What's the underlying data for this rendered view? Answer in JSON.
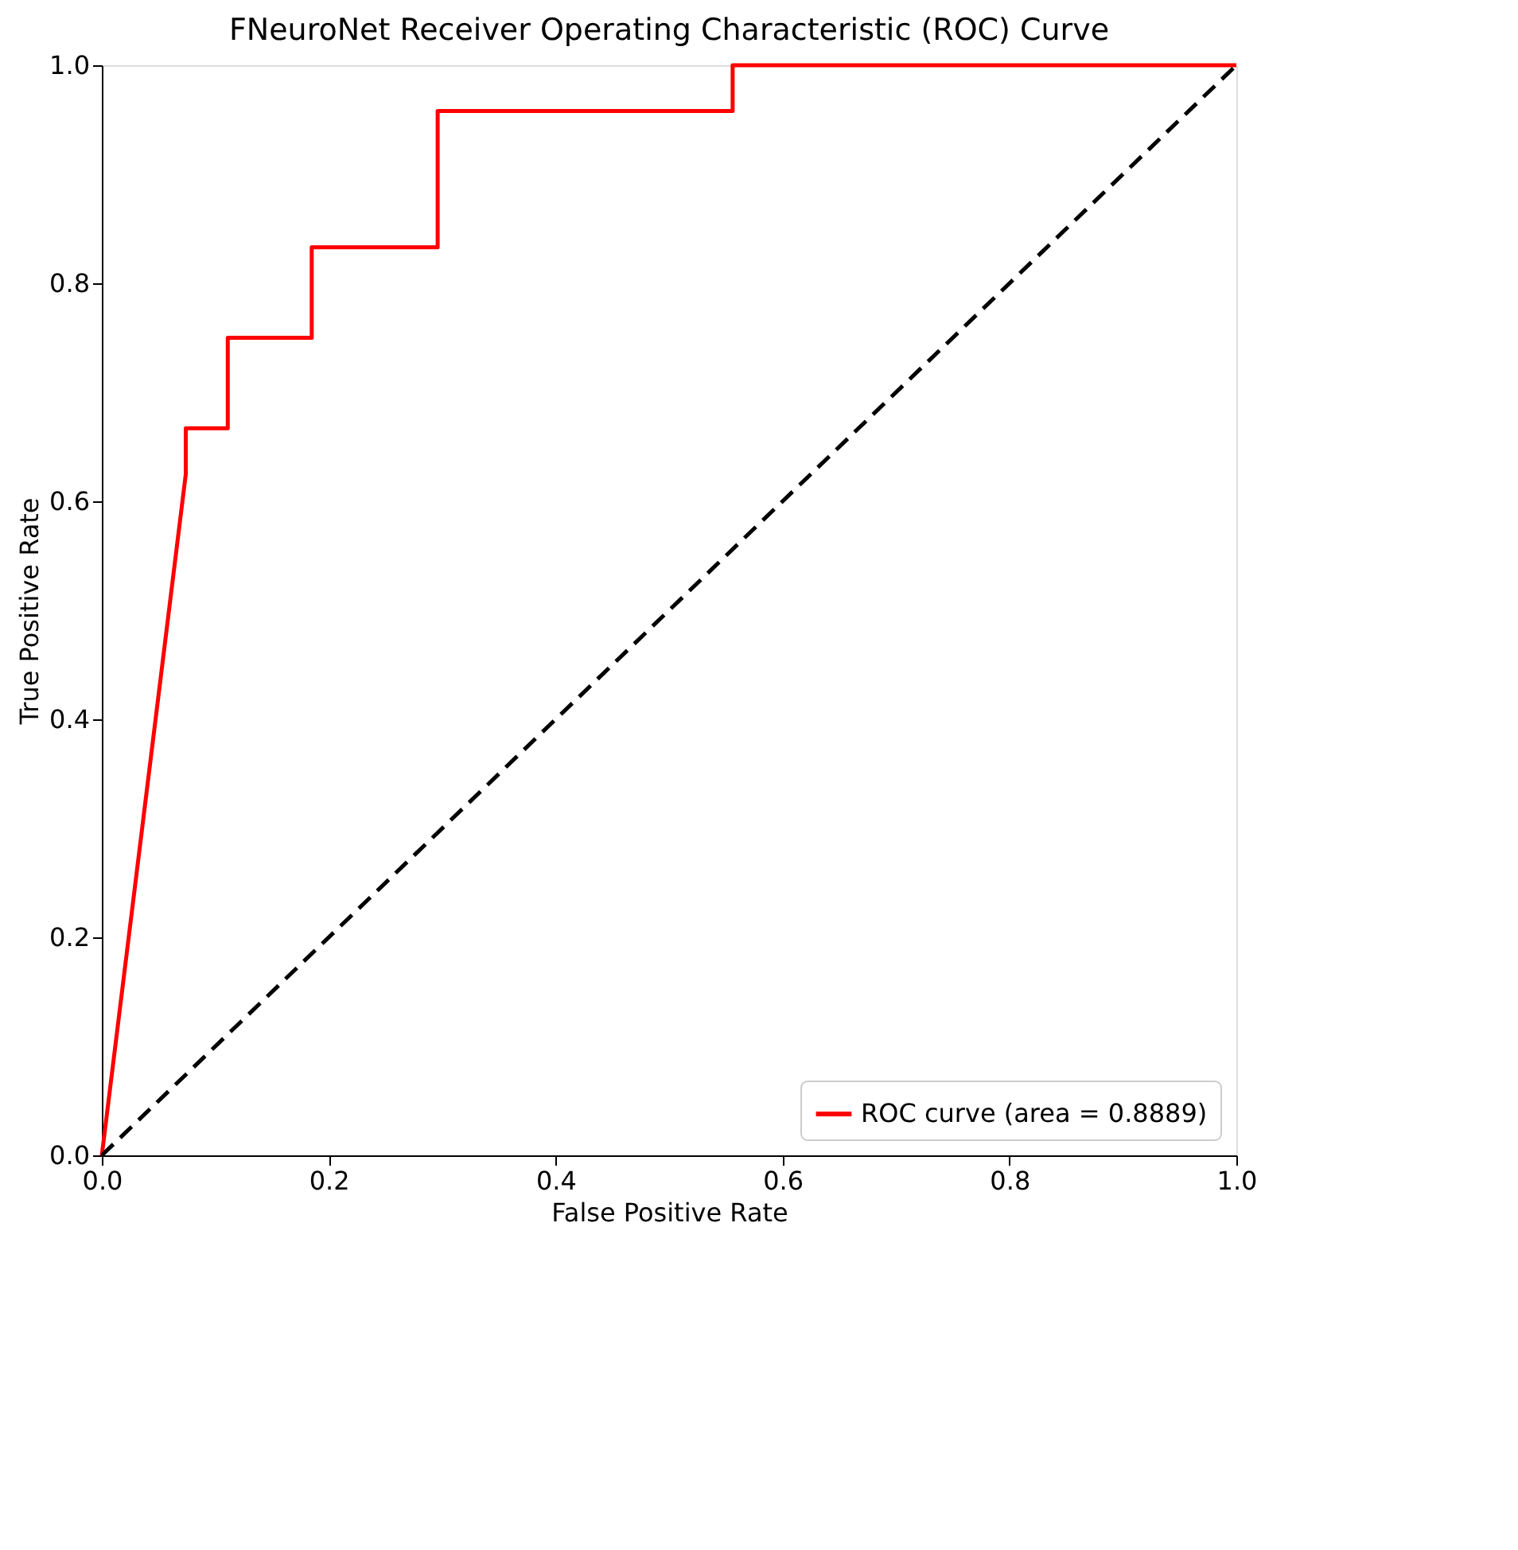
{
  "chart_data": {
    "type": "line",
    "title": "FNeuroNet Receiver Operating Characteristic (ROC) Curve",
    "xlabel": "False Positive Rate",
    "ylabel": "True Positive Rate",
    "xlim": [
      0.0,
      1.0
    ],
    "ylim": [
      0.0,
      1.0
    ],
    "xticks": [
      {
        "value": 0,
        "label": "0.0"
      },
      {
        "value": 0.2,
        "label": "0.2"
      },
      {
        "value": 0.4,
        "label": "0.4"
      },
      {
        "value": 0.6,
        "label": "0.6"
      },
      {
        "value": 0.8,
        "label": "0.8"
      },
      {
        "value": 1,
        "label": "1.0"
      }
    ],
    "yticks": [
      {
        "value": 0,
        "label": "0.0"
      },
      {
        "value": 0.2,
        "label": "0.2"
      },
      {
        "value": 0.4,
        "label": "0.4"
      },
      {
        "value": 0.6,
        "label": "0.6"
      },
      {
        "value": 0.8,
        "label": "0.8"
      },
      {
        "value": 1,
        "label": "1.0"
      }
    ],
    "grid": false,
    "legend": "bottom right",
    "marker": "none",
    "series": [
      {
        "name": "ROC curve (area = 0.8889)",
        "color": "#ff0000",
        "line_style": "solid",
        "x": [
          0,
          0.074,
          0.074,
          0.111,
          0.111,
          0.185,
          0.185,
          0.296,
          0.296,
          0.556,
          0.556,
          1
        ],
        "values": [
          0,
          0.625,
          0.667,
          0.667,
          0.75,
          0.75,
          0.833,
          0.833,
          0.958,
          0.958,
          1,
          1
        ]
      },
      {
        "color": "#000000",
        "line_style": "dashed",
        "x": [
          0,
          1
        ],
        "values": [
          0,
          1
        ]
      }
    ]
  }
}
